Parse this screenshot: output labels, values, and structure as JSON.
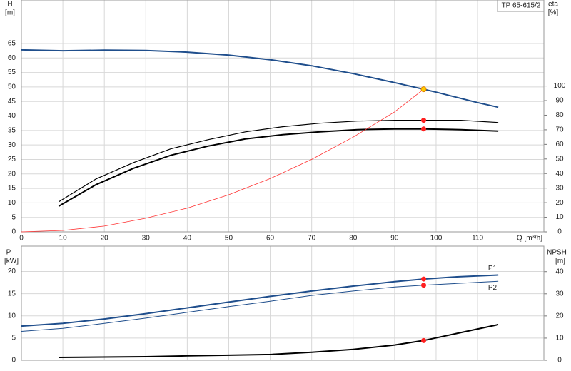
{
  "chart_data": [
    {
      "type": "line",
      "title": "TP 65-615/2",
      "ylabel": "H",
      "yunit": "[m]",
      "y2label": "eta",
      "y2unit": "[%]",
      "xlabel": "Q [m³/h]",
      "xlim": [
        0,
        126
      ],
      "xticks": [
        0,
        10,
        20,
        30,
        40,
        50,
        60,
        70,
        80,
        90,
        100,
        110
      ],
      "ylim": [
        0,
        80
      ],
      "yticks": [
        0,
        5,
        10,
        15,
        20,
        25,
        30,
        35,
        40,
        45,
        50,
        55,
        60,
        65
      ],
      "y2lim": [
        0,
        159
      ],
      "y2ticks": [
        0,
        10,
        20,
        30,
        40,
        50,
        60,
        70,
        80,
        90,
        100
      ],
      "grid": true,
      "series": [
        {
          "kind": "line",
          "color": "#1f4e8c",
          "width": 2,
          "x": [
            0,
            10,
            20,
            30,
            40,
            50,
            60,
            70,
            80,
            90,
            97,
            100,
            110,
            115
          ],
          "values": [
            62.8,
            62.5,
            62.7,
            62.6,
            62.0,
            61.0,
            59.4,
            57.3,
            54.6,
            51.5,
            49.2,
            48.2,
            44.6,
            43.0
          ]
        },
        {
          "kind": "line",
          "color": "#000000",
          "width": 2,
          "axis": "y2",
          "x": [
            9,
            18,
            27,
            36,
            45,
            54,
            63,
            72,
            81,
            90,
            97,
            106,
            115
          ],
          "values": [
            17.6,
            32.4,
            43.6,
            52.5,
            58.8,
            63.7,
            66.7,
            68.6,
            70.1,
            70.6,
            70.6,
            70.1,
            69.1
          ]
        },
        {
          "kind": "line",
          "color": "#000000",
          "width": 1.2,
          "axis": "y2",
          "x": [
            9,
            18,
            27,
            36,
            45,
            54,
            63,
            72,
            81,
            90,
            97,
            106,
            115
          ],
          "values": [
            20.6,
            36.3,
            47.5,
            56.9,
            63.2,
            68.6,
            72.1,
            74.5,
            76.0,
            76.5,
            76.5,
            76.5,
            75.0
          ]
        },
        {
          "kind": "line",
          "color": "#ff3030",
          "width": 0.8,
          "x": [
            0,
            10,
            20,
            30,
            40,
            50,
            60,
            70,
            80,
            90,
            97
          ],
          "values": [
            0,
            0.5,
            2,
            4.7,
            8.2,
            12.8,
            18.4,
            25,
            32.7,
            41.4,
            49.2
          ]
        },
        {
          "kind": "points",
          "color": "#ff2020",
          "axis": "y2",
          "x": [
            97,
            97
          ],
          "values": [
            70.6,
            76.5
          ]
        },
        {
          "kind": "points",
          "color": "#ffcc00",
          "x": [
            97
          ],
          "values": [
            49.2
          ]
        }
      ]
    },
    {
      "type": "line",
      "ylabel": "P",
      "yunit": "[kW]",
      "y2label": "NPSH",
      "y2unit": "[m]",
      "xlim": [
        0,
        126
      ],
      "xticks": [
        0,
        10,
        20,
        30,
        40,
        50,
        60,
        70,
        80,
        90,
        100,
        110
      ],
      "ylim": [
        0,
        25.7
      ],
      "yticks": [
        0,
        5,
        10,
        15,
        20
      ],
      "y2lim": [
        0,
        51.5
      ],
      "y2ticks": [
        0,
        10,
        20,
        30,
        40
      ],
      "grid": true,
      "series": [
        {
          "kind": "line",
          "name": "P1",
          "color": "#1f4e8c",
          "width": 2,
          "x": [
            0,
            10,
            20,
            30,
            40,
            50,
            60,
            70,
            80,
            90,
            97,
            105,
            115
          ],
          "values": [
            7.7,
            8.3,
            9.3,
            10.5,
            11.8,
            13.1,
            14.4,
            15.6,
            16.7,
            17.7,
            18.3,
            18.8,
            19.2
          ]
        },
        {
          "kind": "line",
          "name": "P2",
          "color": "#1f4e8c",
          "width": 1,
          "x": [
            0,
            10,
            20,
            30,
            40,
            50,
            60,
            70,
            80,
            90,
            97,
            105,
            115
          ],
          "values": [
            6.5,
            7.2,
            8.3,
            9.5,
            10.8,
            12.1,
            13.3,
            14.6,
            15.6,
            16.5,
            16.9,
            17.3,
            17.8
          ]
        },
        {
          "kind": "line",
          "color": "#000000",
          "width": 2,
          "axis": "y2",
          "x": [
            9,
            30,
            40,
            50,
            60,
            70,
            80,
            90,
            97,
            105,
            115
          ],
          "values": [
            1.3,
            1.6,
            2.0,
            2.3,
            2.6,
            3.6,
            4.9,
            6.9,
            8.9,
            12.1,
            16.1
          ]
        },
        {
          "kind": "points",
          "color": "#ff2020",
          "x": [
            97,
            97
          ],
          "values": [
            18.3,
            16.9
          ]
        },
        {
          "kind": "points",
          "color": "#ff2020",
          "axis": "y2",
          "x": [
            97
          ],
          "values": [
            8.9
          ]
        }
      ]
    }
  ]
}
